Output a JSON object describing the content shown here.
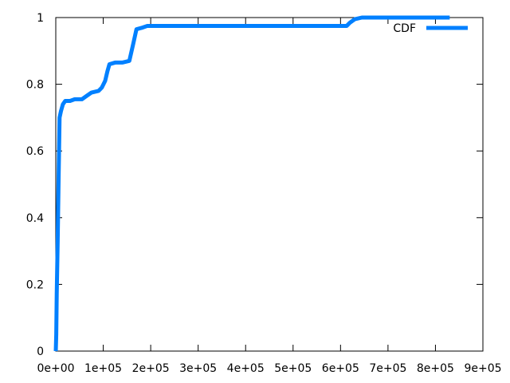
{
  "chart_data": {
    "type": "line",
    "title": "",
    "xlabel": "",
    "ylabel": "",
    "xlim": [
      0,
      900000
    ],
    "ylim": [
      0,
      1
    ],
    "x_ticks": [
      {
        "value": 0,
        "label": "0e+00"
      },
      {
        "value": 100000,
        "label": "1e+05"
      },
      {
        "value": 200000,
        "label": "2e+05"
      },
      {
        "value": 300000,
        "label": "3e+05"
      },
      {
        "value": 400000,
        "label": "4e+05"
      },
      {
        "value": 500000,
        "label": "5e+05"
      },
      {
        "value": 600000,
        "label": "6e+05"
      },
      {
        "value": 700000,
        "label": "7e+05"
      },
      {
        "value": 800000,
        "label": "8e+05"
      },
      {
        "value": 900000,
        "label": "9e+05"
      }
    ],
    "y_ticks": [
      {
        "value": 0,
        "label": "0"
      },
      {
        "value": 0.2,
        "label": "0.2"
      },
      {
        "value": 0.4,
        "label": "0.4"
      },
      {
        "value": 0.6,
        "label": "0.6"
      },
      {
        "value": 0.8,
        "label": "0.8"
      },
      {
        "value": 1,
        "label": "1"
      }
    ],
    "grid": false,
    "legend_position": "top-right",
    "series": [
      {
        "name": "CDF",
        "color": "#0080ff",
        "points": [
          [
            0,
            0
          ],
          [
            1000,
            0.05
          ],
          [
            2000,
            0.17
          ],
          [
            4000,
            0.33
          ],
          [
            6000,
            0.52
          ],
          [
            8000,
            0.7
          ],
          [
            11000,
            0.72
          ],
          [
            15000,
            0.74
          ],
          [
            20000,
            0.75
          ],
          [
            30000,
            0.75
          ],
          [
            40000,
            0.755
          ],
          [
            55000,
            0.755
          ],
          [
            65000,
            0.765
          ],
          [
            75000,
            0.775
          ],
          [
            90000,
            0.78
          ],
          [
            97000,
            0.79
          ],
          [
            104000,
            0.81
          ],
          [
            109000,
            0.84
          ],
          [
            113000,
            0.86
          ],
          [
            125000,
            0.865
          ],
          [
            140000,
            0.865
          ],
          [
            155000,
            0.87
          ],
          [
            163000,
            0.92
          ],
          [
            170000,
            0.965
          ],
          [
            183000,
            0.97
          ],
          [
            193000,
            0.975
          ],
          [
            300000,
            0.975
          ],
          [
            500000,
            0.975
          ],
          [
            613000,
            0.975
          ],
          [
            620000,
            0.985
          ],
          [
            630000,
            0.995
          ],
          [
            645000,
            1.0
          ],
          [
            700000,
            1.0
          ],
          [
            830000,
            1.0
          ]
        ]
      }
    ]
  }
}
